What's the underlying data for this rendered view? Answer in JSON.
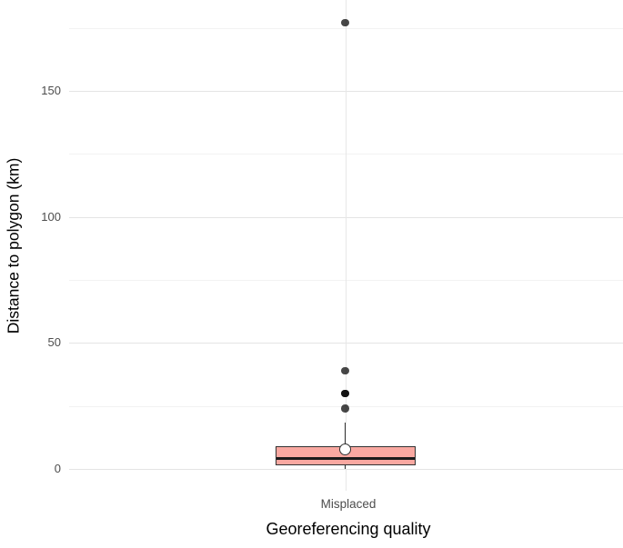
{
  "figure": {
    "y_axis_title": "Distance to polygon (km)",
    "x_axis_title": "Georeferencing quality",
    "category_label": "Misplaced"
  },
  "colors": {
    "background": "#ffffff",
    "grid_major": "#e4e4e4",
    "grid_minor": "#f2f2f2",
    "box_fill": "#f9a8a1",
    "box_stroke": "#333333",
    "median_line": "#1a1a1a",
    "outlier_point": "#000000",
    "mean_point_fill": "#ffffff",
    "tick_text": "#4d4d4d",
    "title_text": "#000000"
  },
  "chart_data": {
    "type": "boxplot",
    "title": "",
    "xlabel": "Georeferencing quality",
    "ylabel": "Distance to polygon (km)",
    "categories": [
      "Misplaced"
    ],
    "y_ticks": [
      0,
      50,
      100,
      150
    ],
    "y_minor_ticks": [
      25,
      75,
      125,
      175
    ],
    "ylim": [
      -9,
      186
    ],
    "grid": "horizontal major and minor lines, vertical major line at category",
    "legend": "none",
    "series": [
      {
        "category": "Misplaced",
        "whisker_low": 0,
        "q1": 1.5,
        "median": 4.2,
        "q3": 9,
        "whisker_high": 18.5,
        "mean": 7.6,
        "outliers": [
          24,
          30,
          30,
          39,
          177
        ]
      }
    ]
  }
}
